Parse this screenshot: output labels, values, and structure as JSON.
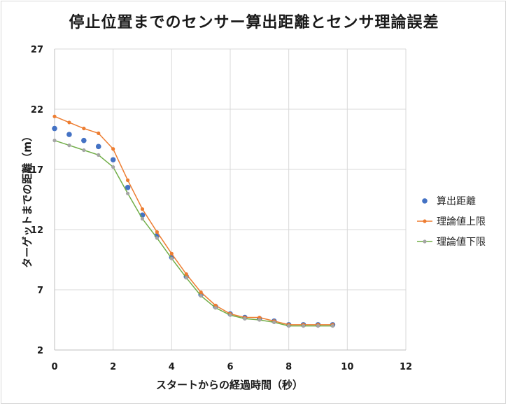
{
  "chart_data": {
    "type": "scatter",
    "title": "停止位置までのセンサー算出距離とセンサ理論誤差",
    "xlabel": "スタートからの経過時間（秒）",
    "ylabel": "ターゲットまでの距離（m）",
    "xlim": [
      0,
      12
    ],
    "ylim": [
      2,
      27
    ],
    "xticks": [
      "0",
      "2",
      "4",
      "6",
      "8",
      "10",
      "12"
    ],
    "yticks": [
      "2",
      "7",
      "12",
      "17",
      "22",
      "27"
    ],
    "grid": true,
    "legend_position": "right",
    "series": [
      {
        "name": "算出距離",
        "style": "markers",
        "color": "#4472c4",
        "x": [
          0,
          0.5,
          1,
          1.5,
          2,
          2.5,
          3,
          3.5,
          4,
          4.5,
          5,
          5.5,
          6,
          6.5,
          7,
          7.5,
          8,
          8.5,
          9,
          9.5
        ],
        "y": [
          20.4,
          19.9,
          19.4,
          18.9,
          17.8,
          15.5,
          13.2,
          11.5,
          9.7,
          8.1,
          6.6,
          5.6,
          5.0,
          4.7,
          4.6,
          4.4,
          4.1,
          4.1,
          4.1,
          4.1
        ]
      },
      {
        "name": "理論値上限",
        "style": "line-markers",
        "color": "#ed7d31",
        "x": [
          0,
          0.5,
          1,
          1.5,
          2,
          2.5,
          3,
          3.5,
          4,
          4.5,
          5,
          5.5,
          6,
          6.5,
          7,
          7.5,
          8,
          8.5,
          9,
          9.5
        ],
        "y": [
          21.4,
          20.9,
          20.4,
          20.0,
          18.7,
          16.1,
          13.7,
          11.8,
          10.0,
          8.3,
          6.8,
          5.7,
          5.0,
          4.7,
          4.7,
          4.4,
          4.1,
          4.1,
          4.1,
          4.1
        ]
      },
      {
        "name": "理論値下限",
        "style": "line-markers",
        "color": "#a5a5a5",
        "line_color": "#70ad47",
        "x": [
          0,
          0.5,
          1,
          1.5,
          2,
          2.5,
          3,
          3.5,
          4,
          4.5,
          5,
          5.5,
          6,
          6.5,
          7,
          7.5,
          8,
          8.5,
          9,
          9.5
        ],
        "y": [
          19.4,
          19.0,
          18.6,
          18.2,
          17.2,
          15.0,
          12.9,
          11.3,
          9.6,
          8.0,
          6.5,
          5.5,
          4.9,
          4.6,
          4.5,
          4.3,
          4.0,
          4.0,
          4.0,
          4.0
        ]
      }
    ]
  }
}
